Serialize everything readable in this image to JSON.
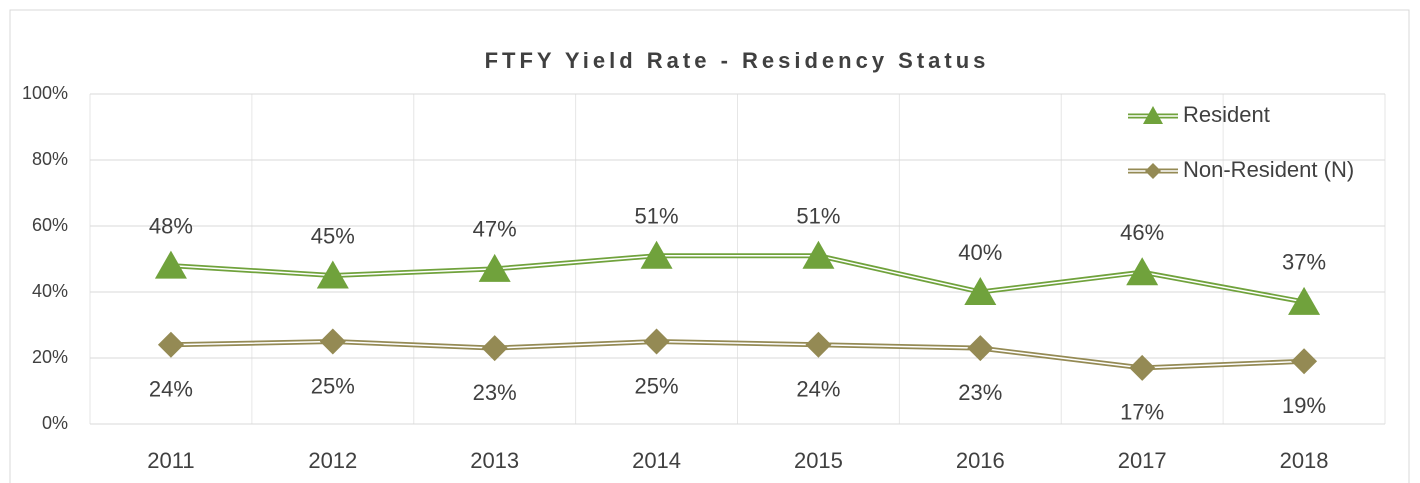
{
  "chart_data": {
    "type": "line",
    "title": "FTFY Yield Rate - Residency Status",
    "categories": [
      "2011",
      "2012",
      "2013",
      "2014",
      "2015",
      "2016",
      "2017",
      "2018"
    ],
    "series": [
      {
        "name": "Resident",
        "color": "#70a23c",
        "marker": "triangle",
        "values": [
          48,
          45,
          47,
          51,
          51,
          40,
          46,
          37
        ],
        "value_labels": [
          "48%",
          "45%",
          "47%",
          "51%",
          "51%",
          "40%",
          "46%",
          "37%"
        ]
      },
      {
        "name": "Non-Resident (N)",
        "color": "#948a54",
        "marker": "diamond",
        "values": [
          24,
          25,
          23,
          25,
          24,
          23,
          17,
          19
        ],
        "value_labels": [
          "24%",
          "25%",
          "23%",
          "25%",
          "24%",
          "23%",
          "17%",
          "19%"
        ]
      }
    ],
    "ylim": [
      0,
      100
    ],
    "yticks": [
      {
        "value": 0,
        "label": "0%"
      },
      {
        "value": 20,
        "label": "20%"
      },
      {
        "value": 40,
        "label": "40%"
      },
      {
        "value": 60,
        "label": "60%"
      },
      {
        "value": 80,
        "label": "80%"
      },
      {
        "value": 100,
        "label": "100%"
      }
    ],
    "grid": true,
    "legend": "upper right"
  }
}
